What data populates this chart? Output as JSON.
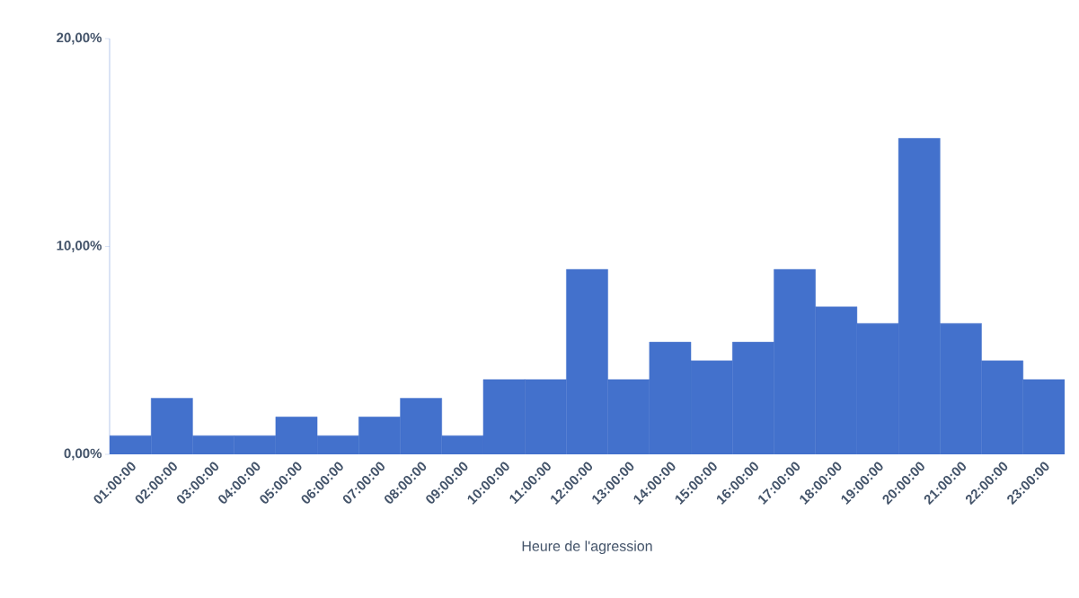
{
  "chart_data": {
    "type": "bar",
    "xlabel": "Heure de l'agression",
    "categories": [
      "01:00:00",
      "02:00:00",
      "03:00:00",
      "04:00:00",
      "05:00:00",
      "06:00:00",
      "07:00:00",
      "08:00:00",
      "09:00:00",
      "10:00:00",
      "11:00:00",
      "12:00:00",
      "13:00:00",
      "14:00:00",
      "15:00:00",
      "16:00:00",
      "17:00:00",
      "18:00:00",
      "19:00:00",
      "20:00:00",
      "21:00:00",
      "22:00:00",
      "23:00:00"
    ],
    "values": [
      0.9,
      2.7,
      0.9,
      0.9,
      1.8,
      0.9,
      1.8,
      2.7,
      0.9,
      3.6,
      3.6,
      8.9,
      3.6,
      5.4,
      4.5,
      5.4,
      8.9,
      7.1,
      6.3,
      15.2,
      6.3,
      4.5,
      3.6
    ],
    "color": "#4371cc",
    "ylim": [
      0,
      20
    ],
    "yticks": [
      {
        "value": 0,
        "label": "0,00%"
      },
      {
        "value": 10,
        "label": "10,00%"
      },
      {
        "value": 20,
        "label": "20,00%"
      }
    ],
    "grid": false
  }
}
